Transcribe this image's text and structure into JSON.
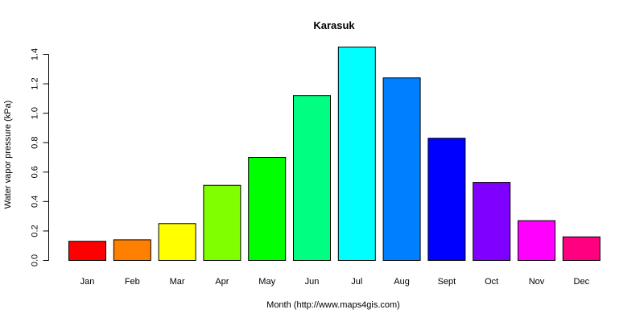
{
  "chart_data": {
    "type": "bar",
    "title": "Karasuk",
    "xlabel": "Month (http://www.maps4gis.com)",
    "ylabel": "Water vapor pressure (kPa)",
    "categories": [
      "Jan",
      "Feb",
      "Mar",
      "Apr",
      "May",
      "Jun",
      "Jul",
      "Aug",
      "Sept",
      "Oct",
      "Nov",
      "Dec"
    ],
    "values": [
      0.13,
      0.14,
      0.25,
      0.51,
      0.7,
      1.12,
      1.45,
      1.24,
      0.83,
      0.53,
      0.27,
      0.16
    ],
    "colors": [
      "#FF0000",
      "#FF8000",
      "#FFFF00",
      "#80FF00",
      "#00FF00",
      "#00FF80",
      "#00FFFF",
      "#0080FF",
      "#0000FF",
      "#8000FF",
      "#FF00FF",
      "#FF0080"
    ],
    "yticks": [
      "0.0",
      "0.2",
      "0.4",
      "0.6",
      "0.8",
      "1.0",
      "1.2",
      "1.4"
    ],
    "ylim": [
      0,
      1.4
    ],
    "grid": false,
    "legend": "none"
  }
}
